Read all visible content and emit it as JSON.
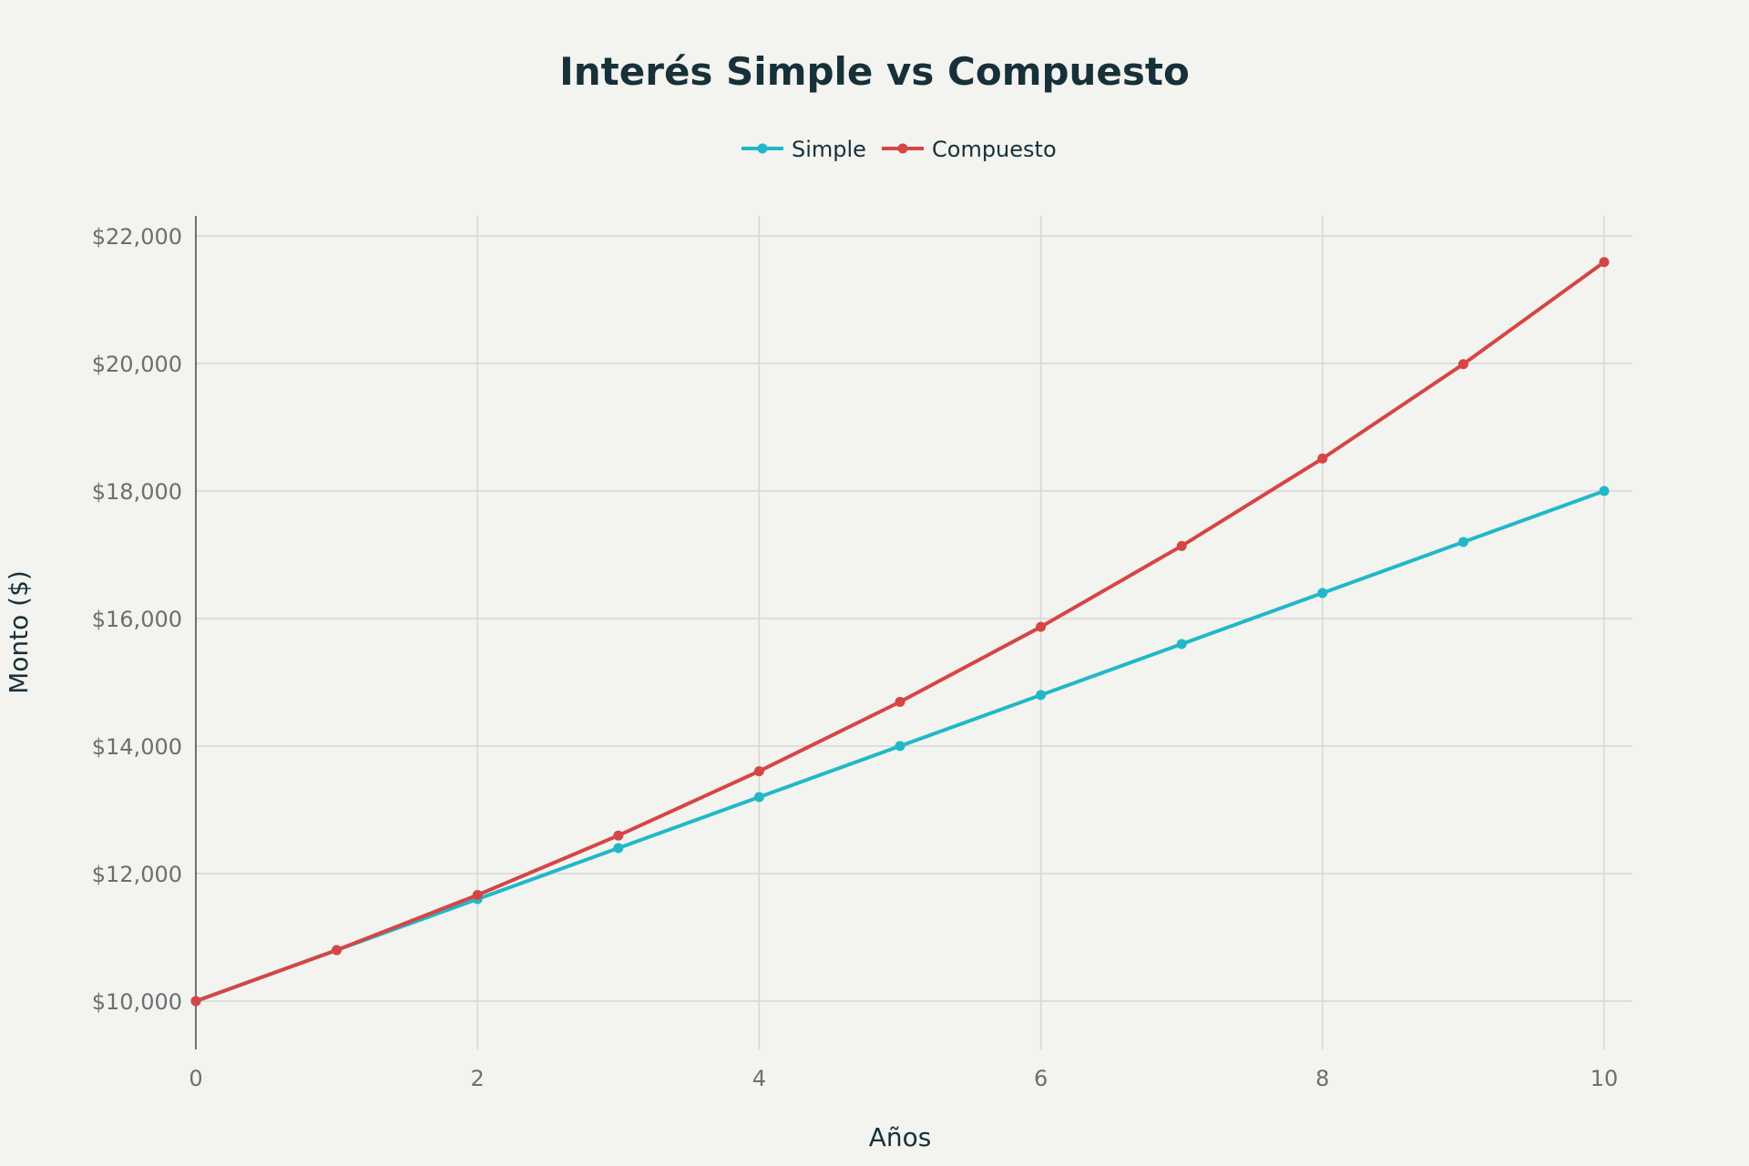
{
  "chart_data": {
    "type": "line",
    "title": "Interés Simple vs Compuesto",
    "xlabel": "Años",
    "ylabel": "Monto ($)",
    "x": [
      0,
      1,
      2,
      3,
      4,
      5,
      6,
      7,
      8,
      9,
      10
    ],
    "xlim": [
      0,
      10
    ],
    "ylim": [
      9250,
      22300
    ],
    "x_ticks": [
      0,
      2,
      4,
      6,
      8,
      10
    ],
    "x_tick_labels": [
      "0",
      "2",
      "4",
      "6",
      "8",
      "10"
    ],
    "y_ticks": [
      10000,
      12000,
      14000,
      16000,
      18000,
      20000,
      22000
    ],
    "y_tick_labels": [
      "$10,000",
      "$12,000",
      "$14,000",
      "$16,000",
      "$18,000",
      "$20,000",
      "$22,000"
    ],
    "grid": true,
    "legend_position": "top-center",
    "series": [
      {
        "name": "Simple",
        "color": "#20b8c8",
        "values": [
          10000,
          10800,
          11600,
          12400,
          13200,
          14000,
          14800,
          15600,
          16400,
          17200,
          18000
        ]
      },
      {
        "name": "Compuesto",
        "color": "#d64545",
        "values": [
          10000,
          10800,
          11664,
          12597,
          13605,
          14693,
          15869,
          17138,
          18509,
          19990,
          21589
        ]
      }
    ]
  }
}
